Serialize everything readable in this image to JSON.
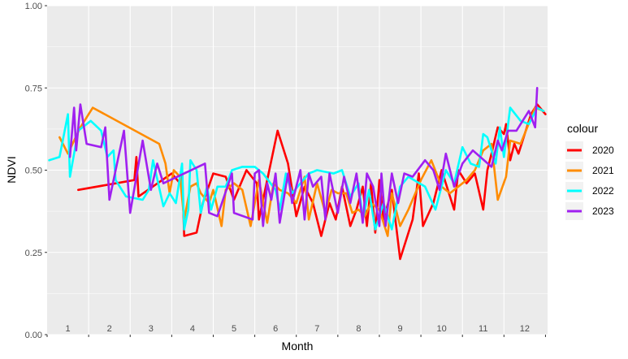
{
  "chart_data": {
    "type": "line",
    "xlabel": "Month",
    "ylabel": "NDVI",
    "ylim": [
      0,
      1
    ],
    "yticks": [
      "0.00",
      "0.25",
      "0.50",
      "0.75",
      "1.00"
    ],
    "month_labels": [
      "1",
      "2",
      "3",
      "4",
      "5",
      "6",
      "7",
      "8",
      "9",
      "10",
      "11",
      "12"
    ],
    "legend_title": "colour",
    "legend_position": "right",
    "grid": true,
    "series": [
      {
        "name": "2020",
        "color": "#ff0000",
        "points": [
          [
            1.25,
            0.44
          ],
          [
            2.6,
            0.47
          ],
          [
            2.65,
            0.54
          ],
          [
            2.7,
            0.42
          ],
          [
            3.5,
            0.49
          ],
          [
            3.7,
            0.46
          ],
          [
            3.75,
            0.5
          ],
          [
            3.8,
            0.3
          ],
          [
            4.1,
            0.31
          ],
          [
            4.25,
            0.4
          ],
          [
            4.5,
            0.49
          ],
          [
            4.8,
            0.48
          ],
          [
            5,
            0.41
          ],
          [
            5.3,
            0.5
          ],
          [
            5.55,
            0.46
          ],
          [
            5.6,
            0.35
          ],
          [
            5.8,
            0.47
          ],
          [
            6.05,
            0.62
          ],
          [
            6.3,
            0.52
          ],
          [
            6.5,
            0.36
          ],
          [
            6.7,
            0.45
          ],
          [
            6.9,
            0.4
          ],
          [
            7.1,
            0.3
          ],
          [
            7.3,
            0.4
          ],
          [
            7.45,
            0.35
          ],
          [
            7.6,
            0.45
          ],
          [
            7.8,
            0.33
          ],
          [
            7.95,
            0.38
          ],
          [
            8.1,
            0.45
          ],
          [
            8.2,
            0.33
          ],
          [
            8.3,
            0.46
          ],
          [
            8.4,
            0.31
          ],
          [
            8.5,
            0.47
          ],
          [
            8.6,
            0.35
          ],
          [
            8.8,
            0.44
          ],
          [
            9,
            0.23
          ],
          [
            9.3,
            0.35
          ],
          [
            9.45,
            0.49
          ],
          [
            9.55,
            0.33
          ],
          [
            9.8,
            0.4
          ],
          [
            10,
            0.5
          ],
          [
            10.3,
            0.38
          ],
          [
            10.4,
            0.5
          ],
          [
            10.6,
            0.46
          ],
          [
            10.8,
            0.49
          ],
          [
            11,
            0.38
          ],
          [
            11.1,
            0.5
          ],
          [
            11.2,
            0.55
          ],
          [
            11.35,
            0.63
          ],
          [
            11.5,
            0.61
          ],
          [
            11.55,
            0.64
          ],
          [
            11.65,
            0.53
          ],
          [
            11.75,
            0.58
          ],
          [
            11.85,
            0.55
          ],
          [
            11.95,
            0.59
          ],
          [
            12.15,
            0.67
          ],
          [
            12.3,
            0.7
          ],
          [
            12.5,
            0.67
          ]
        ]
      },
      {
        "name": "2021",
        "color": "#ff8c00",
        "points": [
          [
            0.8,
            0.6
          ],
          [
            1.0,
            0.55
          ],
          [
            1.3,
            0.63
          ],
          [
            1.6,
            0.69
          ],
          [
            3.2,
            0.58
          ],
          [
            3.35,
            0.52
          ],
          [
            3.45,
            0.43
          ],
          [
            3.55,
            0.5
          ],
          [
            3.7,
            0.48
          ],
          [
            3.8,
            0.35
          ],
          [
            3.95,
            0.45
          ],
          [
            4.1,
            0.46
          ],
          [
            4.2,
            0.43
          ],
          [
            4.4,
            0.4
          ],
          [
            4.5,
            0.44
          ],
          [
            4.7,
            0.33
          ],
          [
            4.8,
            0.44
          ],
          [
            5,
            0.46
          ],
          [
            5.2,
            0.44
          ],
          [
            5.4,
            0.33
          ],
          [
            5.6,
            0.47
          ],
          [
            5.8,
            0.34
          ],
          [
            5.95,
            0.46
          ],
          [
            6.1,
            0.44
          ],
          [
            6.3,
            0.43
          ],
          [
            6.5,
            0.4
          ],
          [
            6.7,
            0.48
          ],
          [
            6.8,
            0.35
          ],
          [
            7,
            0.46
          ],
          [
            7.2,
            0.37
          ],
          [
            7.35,
            0.44
          ],
          [
            7.5,
            0.43
          ],
          [
            7.7,
            0.43
          ],
          [
            7.85,
            0.37
          ],
          [
            8,
            0.38
          ],
          [
            8.15,
            0.36
          ],
          [
            8.3,
            0.4
          ],
          [
            8.5,
            0.38
          ],
          [
            8.7,
            0.3
          ],
          [
            8.8,
            0.43
          ],
          [
            9,
            0.33
          ],
          [
            9.2,
            0.38
          ],
          [
            9.5,
            0.47
          ],
          [
            9.75,
            0.53
          ],
          [
            10,
            0.45
          ],
          [
            10.2,
            0.43
          ],
          [
            10.6,
            0.47
          ],
          [
            10.8,
            0.5
          ],
          [
            11,
            0.56
          ],
          [
            11.2,
            0.58
          ],
          [
            11.35,
            0.41
          ],
          [
            11.55,
            0.48
          ],
          [
            11.65,
            0.59
          ],
          [
            11.9,
            0.58
          ],
          [
            12.25,
            0.69
          ],
          [
            12.45,
            0.68
          ]
        ]
      },
      {
        "name": "2022",
        "color": "#00ffff",
        "points": [
          [
            0.55,
            0.53
          ],
          [
            0.8,
            0.54
          ],
          [
            1.0,
            0.67
          ],
          [
            1.05,
            0.48
          ],
          [
            1.25,
            0.62
          ],
          [
            1.55,
            0.65
          ],
          [
            1.8,
            0.62
          ],
          [
            1.95,
            0.54
          ],
          [
            2.1,
            0.56
          ],
          [
            2.15,
            0.47
          ],
          [
            2.4,
            0.42
          ],
          [
            2.8,
            0.41
          ],
          [
            2.95,
            0.44
          ],
          [
            3.05,
            0.53
          ],
          [
            3.3,
            0.39
          ],
          [
            3.45,
            0.43
          ],
          [
            3.6,
            0.4
          ],
          [
            3.75,
            0.52
          ],
          [
            3.8,
            0.32
          ],
          [
            3.9,
            0.38
          ],
          [
            3.95,
            0.53
          ],
          [
            4.1,
            0.5
          ],
          [
            4.2,
            0.37
          ],
          [
            4.35,
            0.45
          ],
          [
            4.45,
            0.38
          ],
          [
            4.6,
            0.45
          ],
          [
            4.8,
            0.45
          ],
          [
            4.95,
            0.5
          ],
          [
            5.2,
            0.51
          ],
          [
            5.5,
            0.51
          ],
          [
            5.7,
            0.49
          ],
          [
            6,
            0.44
          ],
          [
            6.1,
            0.38
          ],
          [
            6.25,
            0.49
          ],
          [
            6.4,
            0.43
          ],
          [
            6.6,
            0.46
          ],
          [
            6.8,
            0.49
          ],
          [
            7,
            0.5
          ],
          [
            7.4,
            0.49
          ],
          [
            7.6,
            0.5
          ],
          [
            7.8,
            0.42
          ],
          [
            8,
            0.46
          ],
          [
            8.1,
            0.35
          ],
          [
            8.25,
            0.44
          ],
          [
            8.4,
            0.32
          ],
          [
            8.6,
            0.4
          ],
          [
            8.8,
            0.32
          ],
          [
            9.0,
            0.45
          ],
          [
            9.2,
            0.48
          ],
          [
            9.6,
            0.45
          ],
          [
            9.85,
            0.38
          ],
          [
            10.1,
            0.5
          ],
          [
            10.3,
            0.46
          ],
          [
            10.5,
            0.57
          ],
          [
            10.7,
            0.52
          ],
          [
            10.9,
            0.51
          ],
          [
            11.0,
            0.61
          ],
          [
            11.1,
            0.6
          ],
          [
            11.3,
            0.52
          ],
          [
            11.4,
            0.63
          ],
          [
            11.5,
            0.54
          ],
          [
            11.65,
            0.69
          ],
          [
            11.9,
            0.65
          ],
          [
            12.1,
            0.64
          ],
          [
            12.3,
            0.69
          ],
          [
            12.45,
            0.68
          ]
        ]
      },
      {
        "name": "2023",
        "color": "#a020f0",
        "points": [
          [
            1.05,
            0.54
          ],
          [
            1.15,
            0.69
          ],
          [
            1.2,
            0.56
          ],
          [
            1.3,
            0.7
          ],
          [
            1.45,
            0.58
          ],
          [
            1.8,
            0.57
          ],
          [
            1.9,
            0.63
          ],
          [
            2.0,
            0.41
          ],
          [
            2.2,
            0.53
          ],
          [
            2.35,
            0.62
          ],
          [
            2.5,
            0.37
          ],
          [
            2.8,
            0.59
          ],
          [
            3.0,
            0.44
          ],
          [
            3.15,
            0.52
          ],
          [
            3.3,
            0.46
          ],
          [
            4.3,
            0.52
          ],
          [
            4.4,
            0.37
          ],
          [
            4.6,
            0.36
          ],
          [
            4.95,
            0.49
          ],
          [
            5.0,
            0.37
          ],
          [
            5.45,
            0.35
          ],
          [
            5.5,
            0.49
          ],
          [
            5.6,
            0.5
          ],
          [
            5.7,
            0.33
          ],
          [
            5.8,
            0.46
          ],
          [
            5.9,
            0.41
          ],
          [
            6.0,
            0.49
          ],
          [
            6.1,
            0.34
          ],
          [
            6.3,
            0.49
          ],
          [
            6.4,
            0.4
          ],
          [
            6.6,
            0.5
          ],
          [
            6.7,
            0.35
          ],
          [
            6.8,
            0.49
          ],
          [
            6.9,
            0.45
          ],
          [
            7.1,
            0.48
          ],
          [
            7.2,
            0.35
          ],
          [
            7.3,
            0.49
          ],
          [
            7.5,
            0.37
          ],
          [
            7.65,
            0.48
          ],
          [
            7.8,
            0.4
          ],
          [
            7.95,
            0.49
          ],
          [
            8.1,
            0.34
          ],
          [
            8.2,
            0.49
          ],
          [
            8.35,
            0.45
          ],
          [
            8.5,
            0.33
          ],
          [
            8.55,
            0.49
          ],
          [
            8.65,
            0.33
          ],
          [
            8.8,
            0.49
          ],
          [
            8.95,
            0.4
          ],
          [
            9.1,
            0.49
          ],
          [
            9.3,
            0.48
          ],
          [
            9.6,
            0.53
          ],
          [
            9.8,
            0.5
          ],
          [
            9.95,
            0.44
          ],
          [
            10.1,
            0.55
          ],
          [
            10.3,
            0.45
          ],
          [
            10.5,
            0.52
          ],
          [
            10.75,
            0.56
          ],
          [
            11.2,
            0.51
          ],
          [
            11.35,
            0.59
          ],
          [
            11.45,
            0.56
          ],
          [
            11.6,
            0.62
          ],
          [
            11.8,
            0.62
          ],
          [
            12.1,
            0.68
          ],
          [
            12.25,
            0.63
          ],
          [
            12.3,
            0.75
          ]
        ]
      }
    ]
  }
}
